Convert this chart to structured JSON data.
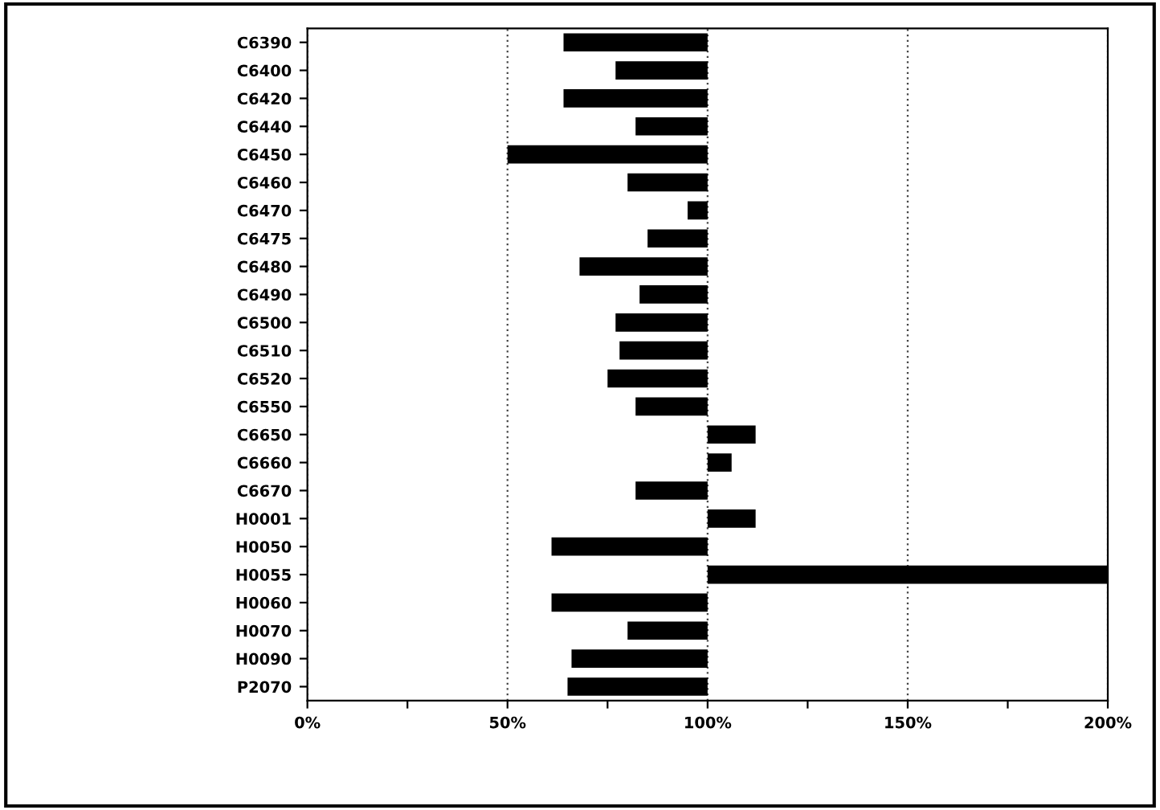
{
  "chart_data": {
    "type": "bar",
    "orientation": "horizontal",
    "categories": [
      "C6390",
      "C6400",
      "C6420",
      "C6440",
      "C6450",
      "C6460",
      "C6470",
      "C6475",
      "C6480",
      "C6490",
      "C6500",
      "C6510",
      "C6520",
      "C6550",
      "C6650",
      "C6660",
      "C6670",
      "H0001",
      "H0050",
      "H0055",
      "H0060",
      "H0070",
      "H0090",
      "P2070"
    ],
    "base": [
      100,
      100,
      100,
      100,
      100,
      100,
      100,
      100,
      100,
      100,
      100,
      100,
      100,
      100,
      100,
      100,
      100,
      100,
      100,
      100,
      100,
      100,
      100,
      100
    ],
    "values": [
      -36,
      -23,
      -36,
      -18,
      -50,
      -20,
      -5,
      -15,
      -32,
      -17,
      -23,
      -22,
      -25,
      -18,
      12,
      6,
      -18,
      12,
      -39,
      100,
      -39,
      -20,
      -34,
      -35
    ],
    "color": "#000000",
    "xlim": [
      0,
      200
    ],
    "xticks": [
      {
        "value": 0,
        "label": "0%"
      },
      {
        "value": 25,
        "label": null
      },
      {
        "value": 50,
        "label": "50%"
      },
      {
        "value": 75,
        "label": null
      },
      {
        "value": 100,
        "label": "100%"
      },
      {
        "value": 125,
        "label": null
      },
      {
        "value": 150,
        "label": "150%"
      },
      {
        "value": 175,
        "label": null
      },
      {
        "value": 200,
        "label": "200%"
      }
    ],
    "grid": "x"
  }
}
